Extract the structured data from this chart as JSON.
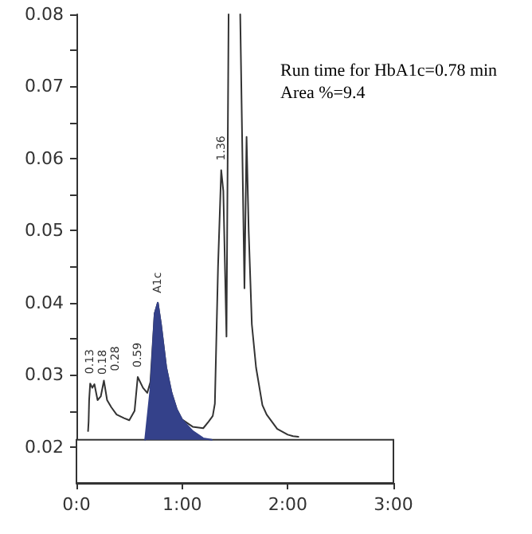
{
  "chart_data": {
    "type": "line",
    "xlim": [
      0,
      3
    ],
    "ylim": [
      0.015,
      0.08
    ],
    "xticks": [
      {
        "value": 0,
        "label": "0:0"
      },
      {
        "value": 1,
        "label": "1:00"
      },
      {
        "value": 2,
        "label": "2:00"
      },
      {
        "value": 3,
        "label": "3:00"
      }
    ],
    "yticks": [
      0.02,
      {
        "value": 0.025,
        "label": null
      },
      0.03,
      {
        "value": 0.035,
        "label": null
      },
      0.04,
      {
        "value": 0.045,
        "label": null
      },
      0.05,
      {
        "value": 0.055,
        "label": null
      },
      0.06,
      {
        "value": 0.065,
        "label": null
      },
      0.07,
      {
        "value": 0.075,
        "label": null
      },
      0.08
    ],
    "grid": false,
    "marker": "none",
    "line_style": "solid",
    "series": [
      {
        "type": "line",
        "color": "#333333",
        "x": [
          0.11,
          0.115,
          0.12,
          0.13,
          0.15,
          0.17,
          0.2,
          0.23,
          0.26,
          0.29,
          0.33,
          0.38,
          0.45,
          0.5,
          0.55,
          0.58,
          0.63,
          0.67,
          0.7,
          0.74,
          0.77,
          0.8,
          0.85,
          0.9,
          0.95,
          1.0,
          1.1,
          1.2,
          1.25,
          1.29,
          1.31,
          1.34,
          1.37,
          1.39,
          1.42,
          1.44,
          1.5,
          1.55,
          1.59,
          1.61,
          1.63,
          1.66,
          1.7,
          1.76,
          1.8,
          1.9,
          2.0,
          2.05,
          2.1
        ],
        "values": [
          0.0222,
          0.0235,
          0.0265,
          0.0288,
          0.0282,
          0.0287,
          0.0265,
          0.027,
          0.0292,
          0.0265,
          0.0255,
          0.0245,
          0.024,
          0.0237,
          0.025,
          0.0297,
          0.0282,
          0.0275,
          0.029,
          0.0385,
          0.04,
          0.037,
          0.031,
          0.0275,
          0.0252,
          0.0238,
          0.0228,
          0.0226,
          0.0235,
          0.0243,
          0.026,
          0.045,
          0.0584,
          0.0555,
          0.0353,
          0.08,
          null,
          0.08,
          0.042,
          0.063,
          0.05,
          0.037,
          0.031,
          0.0258,
          0.0245,
          0.0225,
          0.0217,
          0.0215,
          0.0214
        ]
      },
      {
        "type": "area",
        "color": "#34418a",
        "x": [
          0.65,
          0.7,
          0.74,
          0.77,
          0.8,
          0.85,
          0.9,
          0.95,
          1.0,
          1.1,
          1.2,
          1.28
        ],
        "values": [
          0.021,
          0.028,
          0.0385,
          0.04,
          0.037,
          0.031,
          0.0275,
          0.0252,
          0.0238,
          0.0222,
          0.0212,
          0.021
        ]
      }
    ],
    "bands": [
      {
        "axis": "y",
        "from": 0.015,
        "to": 0.021,
        "color": "#ffffff"
      }
    ],
    "annotations": [
      {
        "text": "0.13",
        "x": 0.13,
        "y": 0.0288
      },
      {
        "text": "0.18",
        "x": 0.17,
        "y": 0.0287
      },
      {
        "text": "0.28",
        "x": 0.26,
        "y": 0.0292
      },
      {
        "text": "0.59",
        "x": 0.58,
        "y": 0.0297
      },
      {
        "text": "A1c",
        "x": 0.77,
        "y": 0.04
      },
      {
        "text": "1.36",
        "x": 1.37,
        "y": 0.0584
      },
      "Run time for HbA1c=0.78 min",
      "Area %=9.4"
    ]
  }
}
